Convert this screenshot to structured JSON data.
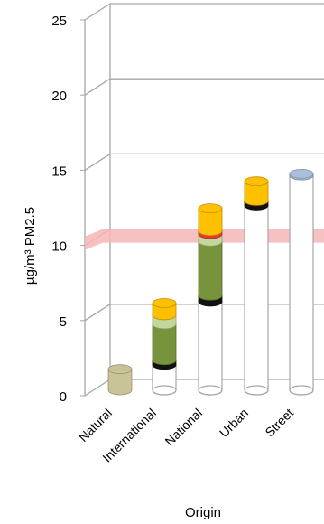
{
  "chart_data": {
    "type": "bar",
    "subtype": "stacked-3d-cylinder",
    "categories": [
      "Natural",
      "International",
      "National",
      "Urban",
      "Street"
    ],
    "xlabel": "Origin",
    "ylabel": "µg/m³ PM2.5",
    "ylim": [
      0,
      25
    ],
    "yticks": [
      "0",
      "5",
      "10",
      "15",
      "20",
      "25"
    ],
    "grid": true,
    "threshold_band": {
      "from": 9.7,
      "to": 10.6,
      "color": "#f7b6b6"
    },
    "segments": [
      {
        "category": "Natural",
        "base": 0,
        "value": 1.4,
        "color": "#c9c497"
      },
      {
        "category": "International",
        "base": 0,
        "value": 1.7,
        "color": "outline"
      },
      {
        "category": "International",
        "base": 1.7,
        "value": 0.3,
        "color": "#111111"
      },
      {
        "category": "International",
        "base": 2.0,
        "value": 2.4,
        "color": "#77933c"
      },
      {
        "category": "International",
        "base": 4.4,
        "value": 0.6,
        "color": "#c4d79b"
      },
      {
        "category": "International",
        "base": 5.0,
        "value": 0.8,
        "color": "#ffc000"
      },
      {
        "category": "National",
        "base": 0,
        "value": 5.9,
        "color": "outline"
      },
      {
        "category": "National",
        "base": 5.9,
        "value": 0.4,
        "color": "#111111"
      },
      {
        "category": "National",
        "base": 6.3,
        "value": 3.6,
        "color": "#77933c"
      },
      {
        "category": "National",
        "base": 9.9,
        "value": 0.5,
        "color": "#c4d79b"
      },
      {
        "category": "National",
        "base": 10.4,
        "value": 0.2,
        "color": "#e53935"
      },
      {
        "category": "National",
        "base": 10.6,
        "value": 1.5,
        "color": "#ffc000"
      },
      {
        "category": "Urban",
        "base": 0,
        "value": 12.3,
        "color": "outline"
      },
      {
        "category": "Urban",
        "base": 12.3,
        "value": 0.3,
        "color": "#111111"
      },
      {
        "category": "Urban",
        "base": 12.6,
        "value": 1.3,
        "color": "#ffc000"
      },
      {
        "category": "Street",
        "base": 0,
        "value": 14.3,
        "color": "outline"
      },
      {
        "category": "Street",
        "base": 14.3,
        "value": 0.1,
        "color": "#a9bfdc"
      }
    ]
  }
}
